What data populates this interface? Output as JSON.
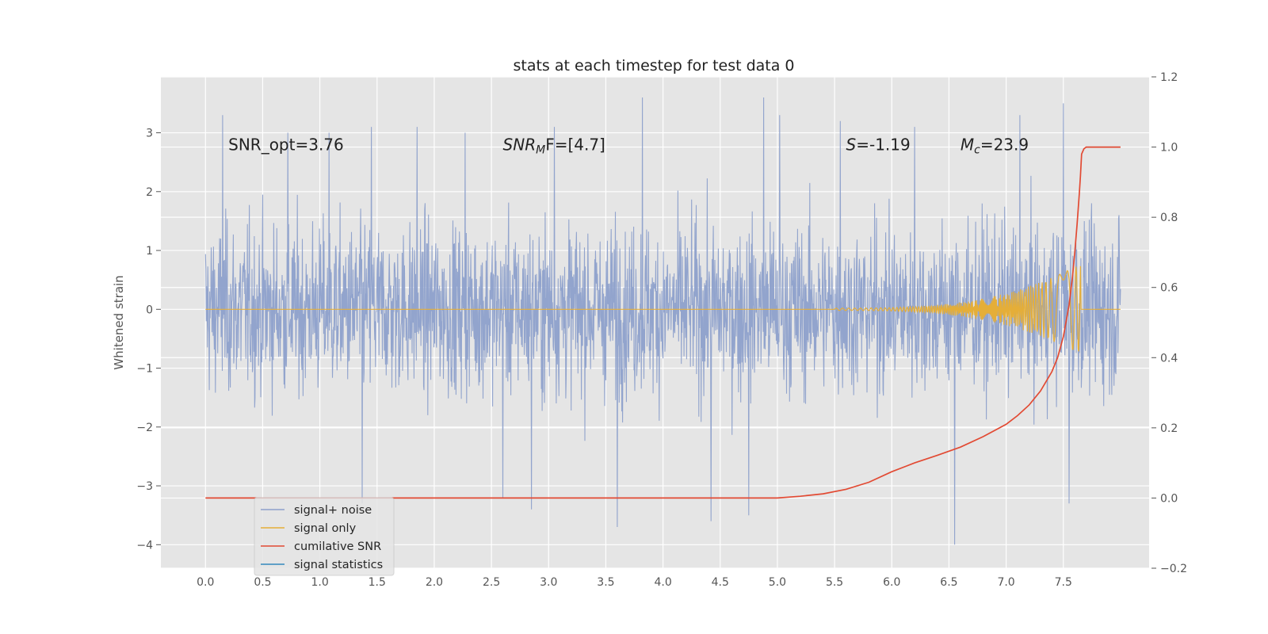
{
  "chart_data": {
    "type": "line",
    "title": "stats at each timestep for test data 0",
    "ylabel": "Whitened strain",
    "xlabel": "",
    "xlim": [
      -0.39,
      8.25
    ],
    "ylim": [
      -4.4,
      3.95
    ],
    "y2lim": [
      -0.2,
      1.2
    ],
    "xticks": [
      "0.0",
      "0.5",
      "1.0",
      "1.5",
      "2.0",
      "2.5",
      "3.0",
      "3.5",
      "4.0",
      "4.5",
      "5.0",
      "5.5",
      "6.0",
      "6.5",
      "7.0",
      "7.5"
    ],
    "xtick_values": [
      0,
      0.5,
      1,
      1.5,
      2,
      2.5,
      3,
      3.5,
      4,
      4.5,
      5,
      5.5,
      6,
      6.5,
      7,
      7.5
    ],
    "yticks": [
      "−4",
      "−3",
      "−2",
      "−1",
      "0",
      "1",
      "2",
      "3"
    ],
    "ytick_values": [
      -4,
      -3,
      -2,
      -1,
      0,
      1,
      2,
      3
    ],
    "y2ticks": [
      "−0.2",
      "0.0",
      "0.2",
      "0.4",
      "0.6",
      "0.8",
      "1.0",
      "1.2"
    ],
    "y2tick_values": [
      -0.2,
      0,
      0.2,
      0.4,
      0.6,
      0.8,
      1.0,
      1.2
    ],
    "grid": true,
    "annotations": {
      "snr_opt": "SNR_opt=3.76",
      "snr_mf_main": "SNR",
      "snr_mf_sub": "M",
      "snr_mf_tail": "F=[4.7]",
      "s_sym": "S",
      "s_val": "=-1.19",
      "mc_sym": "M",
      "mc_sub": "c",
      "mc_val": "=23.9"
    },
    "annotation_positions": {
      "snr_opt": [
        0.2,
        2.8
      ],
      "snr_mf": [
        2.6,
        2.8
      ],
      "s": [
        5.6,
        2.8
      ],
      "mc": [
        6.6,
        2.8
      ]
    },
    "legend": {
      "location": "lower-left",
      "entries": [
        "signal+ noise",
        "signal only",
        "cumilative SNR",
        "signal statistics"
      ],
      "colors": [
        "#8da0cb",
        "#e5ae38",
        "#e24a33",
        "#348abd"
      ]
    },
    "series": [
      {
        "name": "signal+ noise",
        "color": "#8da0cb",
        "style": "dense-noise",
        "x_range": [
          0,
          8.0
        ],
        "typical_band": [
          -1.5,
          1.5
        ],
        "extremes": [
          -4.0,
          3.6
        ],
        "spikes": [
          [
            0.15,
            3.3
          ],
          [
            0.72,
            3.0
          ],
          [
            1.08,
            3.0
          ],
          [
            1.37,
            -3.3
          ],
          [
            1.45,
            3.1
          ],
          [
            1.85,
            3.1
          ],
          [
            2.27,
            3.0
          ],
          [
            2.6,
            -3.2
          ],
          [
            2.85,
            -3.4
          ],
          [
            3.05,
            3.1
          ],
          [
            3.6,
            -3.7
          ],
          [
            3.82,
            3.6
          ],
          [
            4.42,
            -3.6
          ],
          [
            4.75,
            -3.5
          ],
          [
            4.88,
            3.6
          ],
          [
            5.02,
            3.3
          ],
          [
            5.55,
            3.2
          ],
          [
            6.2,
            3.1
          ],
          [
            6.55,
            -4.0
          ],
          [
            7.12,
            3.3
          ],
          [
            7.5,
            3.5
          ],
          [
            7.55,
            -3.3
          ]
        ]
      },
      {
        "name": "signal only",
        "color": "#e5ae38",
        "style": "chirp",
        "chirp_start": 5.5,
        "chirp_end": 7.65,
        "max_amplitude": 0.75
      },
      {
        "name": "cumilative SNR",
        "color": "#e24a33",
        "axis": "right",
        "x": [
          0,
          1,
          2,
          3,
          4,
          5,
          5.2,
          5.4,
          5.6,
          5.8,
          6.0,
          6.2,
          6.4,
          6.6,
          6.8,
          7.0,
          7.1,
          7.2,
          7.3,
          7.4,
          7.45,
          7.5,
          7.55,
          7.58,
          7.6,
          7.62,
          7.64,
          7.65,
          7.66,
          7.68,
          7.7,
          8.0
        ],
        "y": [
          0,
          0,
          0,
          0,
          0,
          0,
          0.005,
          0.012,
          0.025,
          0.045,
          0.075,
          0.1,
          0.122,
          0.145,
          0.175,
          0.21,
          0.235,
          0.265,
          0.305,
          0.36,
          0.4,
          0.46,
          0.55,
          0.63,
          0.7,
          0.78,
          0.87,
          0.92,
          0.98,
          0.995,
          1.0,
          1.0
        ]
      }
    ]
  }
}
